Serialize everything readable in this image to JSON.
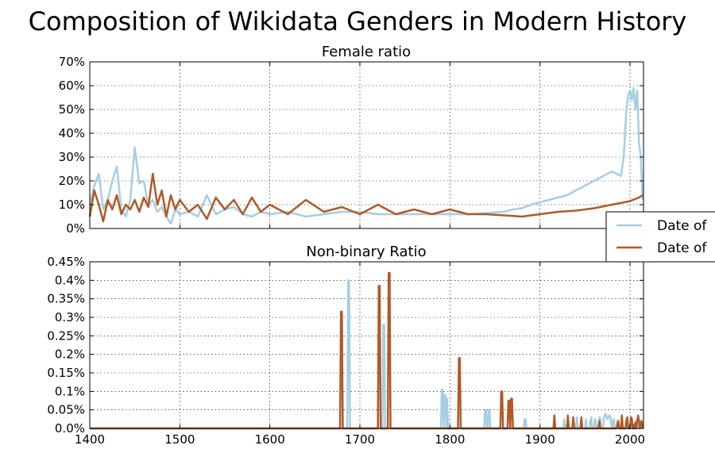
{
  "chart_data": {
    "title": "Composition of Wikidata Genders in Modern History",
    "legend": {
      "placement": "right",
      "entries": [
        {
          "label": "Date of",
          "color": "#a6cee3"
        },
        {
          "label": "Date of",
          "color": "#b15928"
        }
      ]
    },
    "x_ticks": [
      "1400",
      "1500",
      "1600",
      "1700",
      "1800",
      "1900",
      "2000"
    ],
    "subplots": [
      {
        "type": "line",
        "title": "Female ratio",
        "xlim": [
          1400,
          2015
        ],
        "ylim": [
          0,
          0.7
        ],
        "grid": true,
        "y_ticks": [
          "0%",
          "10%",
          "20%",
          "30%",
          "40%",
          "50%",
          "60%",
          "70%"
        ],
        "series": [
          {
            "color": "#a6cee3",
            "x": [
              1400,
              1405,
              1410,
              1415,
              1420,
              1425,
              1430,
              1435,
              1440,
              1445,
              1450,
              1455,
              1460,
              1465,
              1470,
              1475,
              1480,
              1485,
              1490,
              1495,
              1500,
              1510,
              1520,
              1530,
              1540,
              1550,
              1560,
              1570,
              1580,
              1590,
              1600,
              1620,
              1640,
              1660,
              1680,
              1700,
              1720,
              1740,
              1760,
              1780,
              1800,
              1820,
              1840,
              1860,
              1870,
              1880,
              1890,
              1900,
              1910,
              1920,
              1930,
              1940,
              1950,
              1960,
              1970,
              1975,
              1980,
              1985,
              1990,
              1993,
              1996,
              1998,
              2000,
              2002,
              2004,
              2006,
              2008,
              2010,
              2012,
              2014
            ],
            "y": [
              0.1,
              0.18,
              0.23,
              0.08,
              0.12,
              0.2,
              0.26,
              0.08,
              0.05,
              0.12,
              0.34,
              0.19,
              0.2,
              0.1,
              0.12,
              0.07,
              0.09,
              0.05,
              0.02,
              0.08,
              0.06,
              0.07,
              0.05,
              0.14,
              0.06,
              0.08,
              0.09,
              0.06,
              0.05,
              0.07,
              0.06,
              0.07,
              0.05,
              0.06,
              0.07,
              0.07,
              0.06,
              0.06,
              0.06,
              0.06,
              0.06,
              0.06,
              0.065,
              0.07,
              0.08,
              0.085,
              0.1,
              0.11,
              0.12,
              0.13,
              0.14,
              0.16,
              0.18,
              0.2,
              0.22,
              0.23,
              0.24,
              0.23,
              0.22,
              0.3,
              0.5,
              0.56,
              0.58,
              0.54,
              0.59,
              0.5,
              0.58,
              0.36,
              0.3,
              0.12
            ]
          },
          {
            "color": "#b15928",
            "x": [
              1400,
              1405,
              1410,
              1415,
              1420,
              1425,
              1430,
              1435,
              1440,
              1445,
              1450,
              1455,
              1460,
              1465,
              1470,
              1475,
              1480,
              1485,
              1490,
              1495,
              1500,
              1510,
              1520,
              1530,
              1540,
              1550,
              1560,
              1570,
              1580,
              1590,
              1600,
              1620,
              1640,
              1660,
              1680,
              1700,
              1720,
              1740,
              1760,
              1780,
              1800,
              1820,
              1840,
              1860,
              1880,
              1900,
              1920,
              1940,
              1960,
              1980,
              2000,
              2010,
              2014
            ],
            "y": [
              0.05,
              0.16,
              0.1,
              0.03,
              0.12,
              0.08,
              0.14,
              0.06,
              0.1,
              0.08,
              0.12,
              0.07,
              0.13,
              0.09,
              0.23,
              0.1,
              0.16,
              0.05,
              0.14,
              0.08,
              0.12,
              0.07,
              0.1,
              0.04,
              0.13,
              0.08,
              0.12,
              0.06,
              0.13,
              0.07,
              0.1,
              0.06,
              0.12,
              0.07,
              0.09,
              0.06,
              0.1,
              0.06,
              0.08,
              0.06,
              0.08,
              0.06,
              0.06,
              0.055,
              0.05,
              0.06,
              0.07,
              0.075,
              0.085,
              0.1,
              0.115,
              0.13,
              0.14
            ]
          }
        ]
      },
      {
        "type": "line",
        "title": "Non-binary Ratio",
        "xlim": [
          1400,
          2015
        ],
        "ylim": [
          0,
          0.0045
        ],
        "grid": true,
        "y_ticks": [
          "0.0%",
          "0.05%",
          "0.1%",
          "0.15%",
          "0.2%",
          "0.25%",
          "0.3%",
          "0.35%",
          "0.4%",
          "0.45%"
        ],
        "series": [
          {
            "color": "#a6cee3",
            "x": [
              1400,
              1686,
              1687,
              1688,
              1689,
              1690,
              1725,
              1726,
              1727,
              1728,
              1729,
              1790,
              1791,
              1792,
              1793,
              1794,
              1795,
              1796,
              1797,
              1798,
              1838,
              1839,
              1840,
              1841,
              1842,
              1843,
              1844,
              1845,
              1882,
              1883,
              1884,
              1885,
              1926,
              1927,
              1928,
              1930,
              1931,
              1932,
              1936,
              1937,
              1938,
              1940,
              1941,
              1942,
              1943,
              1945,
              1946,
              1947,
              1948,
              1950,
              1951,
              1952,
              1955,
              1956,
              1957,
              1958,
              1960,
              1961,
              1962,
              1963,
              1965,
              1966,
              1967,
              1968,
              1970,
              1971,
              1972,
              1973,
              1974,
              1975,
              1976,
              1977,
              1978,
              1980,
              1981,
              1982,
              1983,
              1985,
              1986,
              1987,
              1990,
              1991,
              1992,
              1995,
              1996,
              1997,
              1998,
              2000,
              2001,
              2002,
              2003,
              2005,
              2006,
              2007,
              2008,
              2010,
              2011,
              2012,
              2013,
              2014
            ],
            "y": [
              0,
              0,
              0.004,
              0.004,
              0,
              0,
              0,
              0.0028,
              0.0028,
              0,
              0,
              0,
              0.00105,
              0.00105,
              0,
              0.0009,
              0.0009,
              0,
              0.0008,
              0,
              0,
              0.0005,
              0.0005,
              0,
              0,
              0.0005,
              0.0005,
              0,
              0,
              0.00025,
              0.00025,
              0,
              0,
              0.00025,
              0,
              0,
              0.00025,
              0,
              0,
              0.00025,
              0,
              0,
              0.0003,
              0,
              0,
              0,
              0.00025,
              0,
              0,
              0,
              0.00025,
              0,
              0,
              0.0002,
              0.0003,
              0,
              0,
              0.00025,
              0.0002,
              0,
              0,
              0.0003,
              0.00025,
              0,
              0,
              0.0003,
              0.00035,
              0.0004,
              0.0003,
              0.00025,
              0.0003,
              0.00035,
              0.0003,
              0,
              0.0002,
              0.00025,
              0,
              0,
              0.0002,
              0,
              0,
              0.0002,
              0,
              0,
              0.00025,
              0.00015,
              0,
              0,
              0.0002,
              0.0003,
              0,
              0,
              0.0002,
              0.0001,
              0,
              0.0001,
              0,
              0.0002,
              0.0001,
              0
            ]
          },
          {
            "color": "#b15928",
            "x": [
              1400,
              1678,
              1679,
              1680,
              1681,
              1720,
              1721,
              1722,
              1723,
              1731,
              1732,
              1733,
              1734,
              1809,
              1810,
              1811,
              1812,
              1856,
              1857,
              1858,
              1859,
              1864,
              1865,
              1866,
              1867,
              1868,
              1869,
              1870,
              1915,
              1916,
              1917,
              1930,
              1931,
              1932,
              1936,
              1937,
              1938,
              1945,
              1946,
              1947,
              1965,
              1966,
              1967,
              1985,
              1986,
              1987,
              1988,
              1990,
              1991,
              1992,
              1995,
              1996,
              1997,
              1998,
              2000,
              2001,
              2002,
              2003,
              2004,
              2005,
              2006,
              2007,
              2008,
              2009,
              2010,
              2011,
              2012,
              2013,
              2014
            ],
            "y": [
              0,
              0,
              0.00315,
              0.00315,
              0,
              0,
              0.00385,
              0.00385,
              0,
              0,
              0.0042,
              0.0042,
              0,
              0,
              0.0019,
              0.0019,
              0,
              0,
              0.001,
              0.001,
              0,
              0,
              0.00075,
              0.00075,
              0,
              0.0008,
              0.0008,
              0,
              0,
              0.00035,
              0,
              0,
              0.00035,
              0,
              0,
              0.0003,
              0,
              0,
              0.0003,
              0,
              0,
              0.0002,
              0,
              0,
              0.0001,
              0.0002,
              0,
              0,
              0.00035,
              0,
              0,
              0.0002,
              0.0003,
              0,
              0,
              0.0003,
              0.00025,
              0,
              0.0001,
              0,
              0.00015,
              0,
              0.0002,
              0.00035,
              0.0002,
              0,
              0.0001,
              0.0002,
              0
            ]
          }
        ]
      }
    ]
  }
}
